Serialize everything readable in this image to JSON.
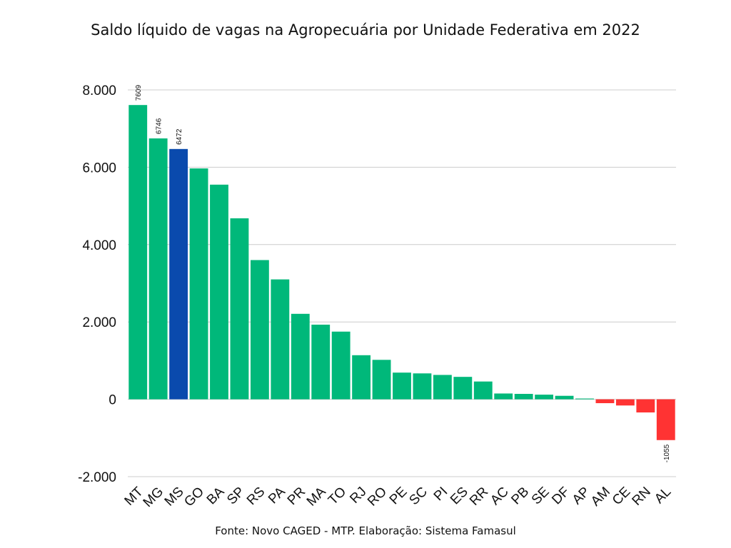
{
  "chart_data": {
    "type": "bar",
    "title": "Saldo líquido de vagas na Agropecuária por Unidade Federativa em 2022",
    "source": "Fonte: Novo CAGED - MTP. Elaboração: Sistema Famasul",
    "categories": [
      "MT",
      "MG",
      "MS",
      "GO",
      "BA",
      "SP",
      "RS",
      "PA",
      "PR",
      "MA",
      "TO",
      "RJ",
      "RO",
      "PE",
      "SC",
      "PI",
      "ES",
      "RR",
      "AC",
      "PB",
      "SE",
      "DF",
      "AP",
      "AM",
      "CE",
      "RN",
      "AL"
    ],
    "values": [
      7609,
      6746,
      6472,
      5970,
      5550,
      4680,
      3600,
      3100,
      2210,
      1930,
      1750,
      1140,
      1020,
      690,
      670,
      630,
      580,
      460,
      150,
      140,
      120,
      90,
      20,
      -100,
      -160,
      -340,
      -1055
    ],
    "data_labels": [
      {
        "category": "MT",
        "text": "7609"
      },
      {
        "category": "MG",
        "text": "6746"
      },
      {
        "category": "MS",
        "text": "6472"
      },
      {
        "category": "AL",
        "text": "-1055"
      }
    ],
    "highlight": {
      "category": "MS",
      "color": "#0a4aad"
    },
    "colors": {
      "positive": "#00b87a",
      "negative": "#ff3333",
      "grid": "#cccccc"
    },
    "ylim": [
      -2000,
      8000
    ],
    "yticks": [
      {
        "value": 8000,
        "label": "8.000"
      },
      {
        "value": 6000,
        "label": "6.000"
      },
      {
        "value": 4000,
        "label": "4.000"
      },
      {
        "value": 2000,
        "label": "2.000"
      },
      {
        "value": 0,
        "label": "0"
      },
      {
        "value": -2000,
        "label": "-2.000"
      }
    ],
    "grid": true,
    "xlabel": "",
    "ylabel": ""
  }
}
